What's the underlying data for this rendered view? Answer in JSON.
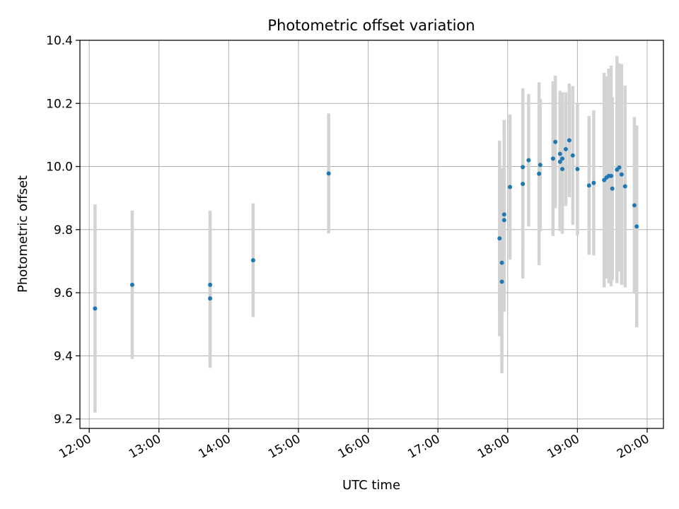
{
  "chart_data": {
    "type": "scatter",
    "title": "Photometric offset variation",
    "xlabel": "UTC time",
    "ylabel": "Photometric offset",
    "x_ticks": [
      "12:00",
      "13:00",
      "14:00",
      "15:00",
      "16:00",
      "17:00",
      "18:00",
      "19:00",
      "20:00"
    ],
    "y_ticks": [
      "9.2",
      "9.4",
      "9.6",
      "9.8",
      "10.0",
      "10.2",
      "10.4"
    ],
    "xlim": [
      "11:52",
      "20:14"
    ],
    "ylim": [
      9.17,
      10.4
    ],
    "grid": true,
    "colors": {
      "point": "#1f77b4",
      "errorbar": "#d3d3d3",
      "grid": "#b0b0b0"
    },
    "points": [
      {
        "time": "12:05",
        "y": 9.55,
        "err": 0.33
      },
      {
        "time": "12:37",
        "y": 9.625,
        "err": 0.235
      },
      {
        "time": "13:44",
        "y": 9.625,
        "err": 0.235
      },
      {
        "time": "13:44",
        "y": 9.582,
        "err": 0.22
      },
      {
        "time": "14:21",
        "y": 9.703,
        "err": 0.18
      },
      {
        "time": "15:26",
        "y": 9.978,
        "err": 0.19
      },
      {
        "time": "17:53",
        "y": 9.772,
        "err": 0.31
      },
      {
        "time": "17:55",
        "y": 9.635,
        "err": 0.29
      },
      {
        "time": "17:55",
        "y": 9.695,
        "err": 0.3
      },
      {
        "time": "17:57",
        "y": 9.83,
        "err": 0.29
      },
      {
        "time": "17:57",
        "y": 9.848,
        "err": 0.3
      },
      {
        "time": "18:02",
        "y": 9.935,
        "err": 0.23
      },
      {
        "time": "18:13",
        "y": 9.945,
        "err": 0.3
      },
      {
        "time": "18:13",
        "y": 9.998,
        "err": 0.25
      },
      {
        "time": "18:18",
        "y": 10.02,
        "err": 0.21
      },
      {
        "time": "18:27",
        "y": 9.977,
        "err": 0.29
      },
      {
        "time": "18:28",
        "y": 10.005,
        "err": 0.21
      },
      {
        "time": "18:39",
        "y": 10.025,
        "err": 0.245
      },
      {
        "time": "18:41",
        "y": 10.078,
        "err": 0.21
      },
      {
        "time": "18:45",
        "y": 10.04,
        "err": 0.2
      },
      {
        "time": "18:45",
        "y": 10.015,
        "err": 0.22
      },
      {
        "time": "18:47",
        "y": 9.992,
        "err": 0.205
      },
      {
        "time": "18:47",
        "y": 10.025,
        "err": 0.21
      },
      {
        "time": "18:50",
        "y": 10.055,
        "err": 0.18
      },
      {
        "time": "18:53",
        "y": 10.083,
        "err": 0.18
      },
      {
        "time": "18:56",
        "y": 10.035,
        "err": 0.22
      },
      {
        "time": "19:00",
        "y": 9.992,
        "err": 0.21
      },
      {
        "time": "19:10",
        "y": 9.94,
        "err": 0.22
      },
      {
        "time": "19:14",
        "y": 9.948,
        "err": 0.23
      },
      {
        "time": "19:23",
        "y": 9.957,
        "err": 0.34
      },
      {
        "time": "19:25",
        "y": 9.965,
        "err": 0.32
      },
      {
        "time": "19:27",
        "y": 9.97,
        "err": 0.34
      },
      {
        "time": "19:29",
        "y": 9.97,
        "err": 0.35
      },
      {
        "time": "19:30",
        "y": 9.93,
        "err": 0.29
      },
      {
        "time": "19:34",
        "y": 9.99,
        "err": 0.36
      },
      {
        "time": "19:36",
        "y": 9.997,
        "err": 0.33
      },
      {
        "time": "19:38",
        "y": 9.975,
        "err": 0.35
      },
      {
        "time": "19:41",
        "y": 9.937,
        "err": 0.32
      },
      {
        "time": "19:49",
        "y": 9.877,
        "err": 0.28
      },
      {
        "time": "19:51",
        "y": 9.81,
        "err": 0.32
      }
    ]
  }
}
